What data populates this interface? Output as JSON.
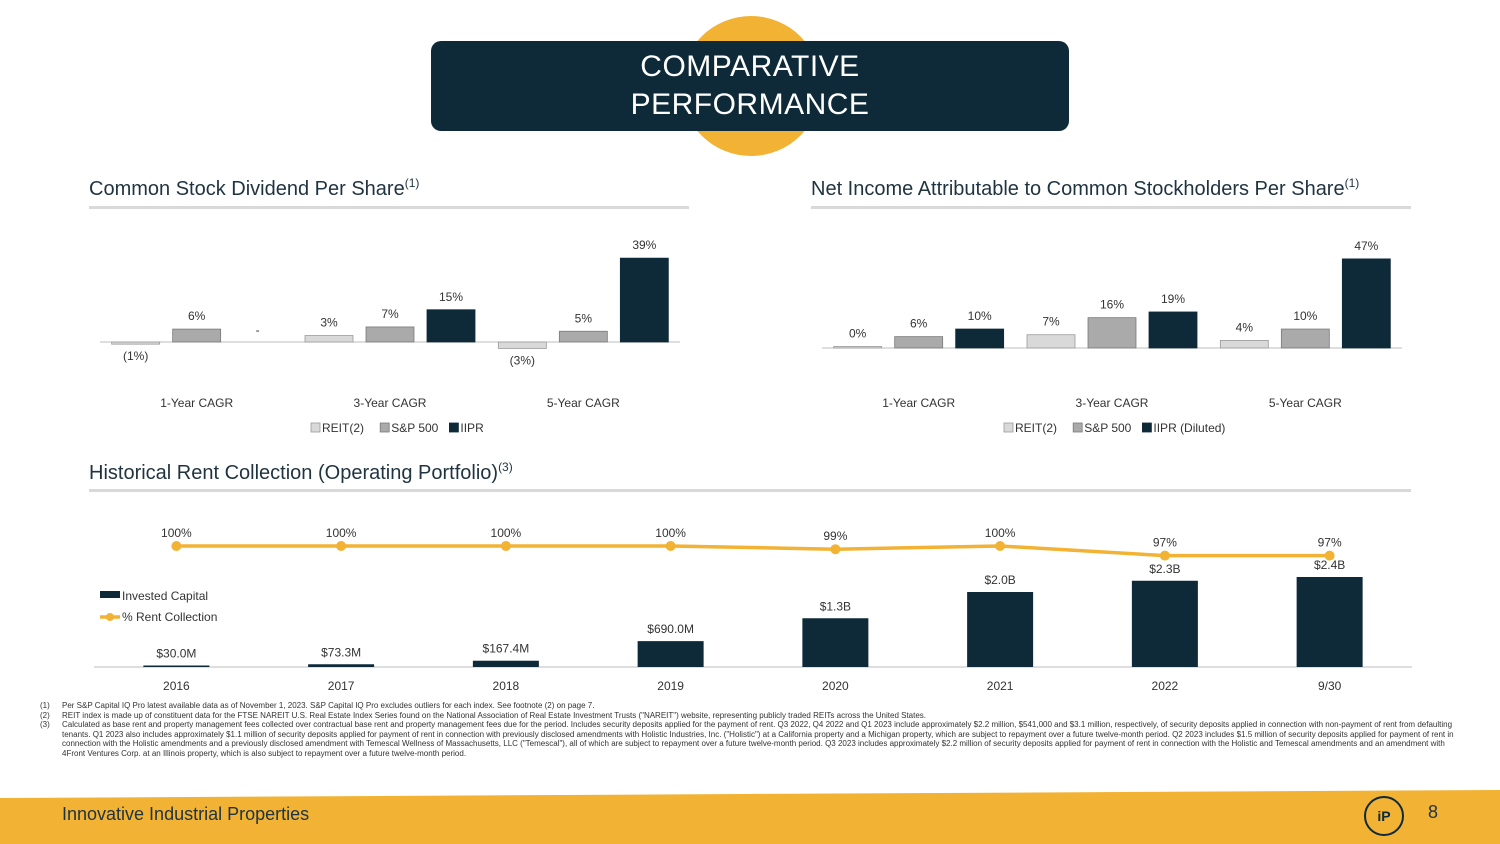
{
  "header": {
    "title_line1": "COMPARATIVE",
    "title_line2": "PERFORMANCE"
  },
  "sections": {
    "dividend_title": "Common Stock Dividend Per Share",
    "dividend_sup": "(1)",
    "net_income_title": "Net Income Attributable to Common Stockholders Per Share",
    "net_income_sup": "(1)",
    "rent_title": "Historical Rent Collection (Operating Portfolio)",
    "rent_sup": "(3)"
  },
  "colors": {
    "navy": "#0e2a38",
    "gold": "#f2b233",
    "reit": "#d9d9d9",
    "sp500": "#aaaaaa",
    "iipr": "#0e2a38"
  },
  "chart_data": [
    {
      "type": "bar",
      "title": "Common Stock Dividend Per Share",
      "categories": [
        "1-Year CAGR",
        "3-Year CAGR",
        "5-Year CAGR"
      ],
      "series": [
        {
          "name": "REIT(2)",
          "values": [
            -1,
            3,
            -3
          ],
          "labels": [
            "(1%)",
            "3%",
            "(3%)"
          ]
        },
        {
          "name": "S&P 500",
          "values": [
            6,
            7,
            5
          ],
          "labels": [
            "6%",
            "7%",
            "5%"
          ]
        },
        {
          "name": "IIPR",
          "values": [
            null,
            15,
            39
          ],
          "labels": [
            "-",
            "15%",
            "39%"
          ]
        }
      ],
      "ylim": [
        -5,
        40
      ],
      "legend": "bottom"
    },
    {
      "type": "bar",
      "title": "Net Income Attributable to Common Stockholders Per Share",
      "categories": [
        "1-Year CAGR",
        "3-Year CAGR",
        "5-Year CAGR"
      ],
      "series": [
        {
          "name": "REIT(2)",
          "values": [
            0,
            7,
            4
          ],
          "labels": [
            "0%",
            "7%",
            "4%"
          ]
        },
        {
          "name": "S&P 500",
          "values": [
            6,
            16,
            10
          ],
          "labels": [
            "6%",
            "16%",
            "10%"
          ]
        },
        {
          "name": "IIPR (Diluted)",
          "values": [
            10,
            19,
            47
          ],
          "labels": [
            "10%",
            "19%",
            "47%"
          ]
        }
      ],
      "ylim": [
        0,
        48
      ],
      "legend": "bottom"
    },
    {
      "type": "bar",
      "title": "Historical Rent Collection (Operating Portfolio)",
      "categories": [
        "2016",
        "2017",
        "2018",
        "2019",
        "2020",
        "2021",
        "2022",
        "9/30"
      ],
      "series": [
        {
          "name": "Invested Capital",
          "unit": "$M",
          "values": [
            30.0,
            73.3,
            167.4,
            690.0,
            1300,
            2000,
            2300,
            2400
          ],
          "labels": [
            "$30.0M",
            "$73.3M",
            "$167.4M",
            "$690.0M",
            "$1.3B",
            "$2.0B",
            "$2.3B",
            "$2.4B"
          ]
        },
        {
          "name": "% Rent Collection",
          "type": "line",
          "values": [
            100,
            100,
            100,
            100,
            99,
            100,
            97,
            97
          ],
          "labels": [
            "100%",
            "100%",
            "100%",
            "100%",
            "99%",
            "100%",
            "97%",
            "97%"
          ]
        }
      ],
      "legend": "left"
    }
  ],
  "footnotes": [
    {
      "n": "(1)",
      "text": "Per S&P Capital IQ Pro latest available data as of November 1, 2023. S&P Capital IQ Pro excludes outliers for each index. See footnote (2) on page 7."
    },
    {
      "n": "(2)",
      "text": "REIT index is made up of constituent data for the FTSE NAREIT U.S. Real Estate Index Series found on the National Association of Real Estate Investment Trusts (\"NAREIT\") website, representing publicly traded REITs across the United States."
    },
    {
      "n": "(3)",
      "text": "Calculated as base rent and property management fees collected over contractual base rent and property management fees due for the period. Includes security deposits applied for the payment of rent. Q3 2022, Q4 2022 and Q1 2023 include approximately $2.2 million, $541,000 and $3.1 million, respectively, of security deposits applied in connection with non-payment of rent from defaulting tenants. Q1 2023 also includes approximately $1.1 million of security deposits applied for payment of rent in connection with previously disclosed amendments with Holistic Industries, Inc. (\"Holistic\") at a California property and a Michigan property, which are subject to repayment over a future twelve-month period. Q2 2023 includes $1.5 million of security deposits applied for payment of rent in connection with the Holistic amendments and a previously disclosed amendment with Temescal Wellness of Massachusetts, LLC (\"Temescal\"), all of which are subject to repayment over a future twelve-month period. Q3 2023 includes approximately $2.2 million of security deposits applied for payment of rent in connection with the Holistic and Temescal amendments and an amendment with 4Front Ventures Corp. at an Illinois property, which is also subject to repayment over a future twelve-month period."
    }
  ],
  "footer": {
    "company": "Innovative Industrial Properties",
    "page_number": "8",
    "logo_text": "iP"
  }
}
